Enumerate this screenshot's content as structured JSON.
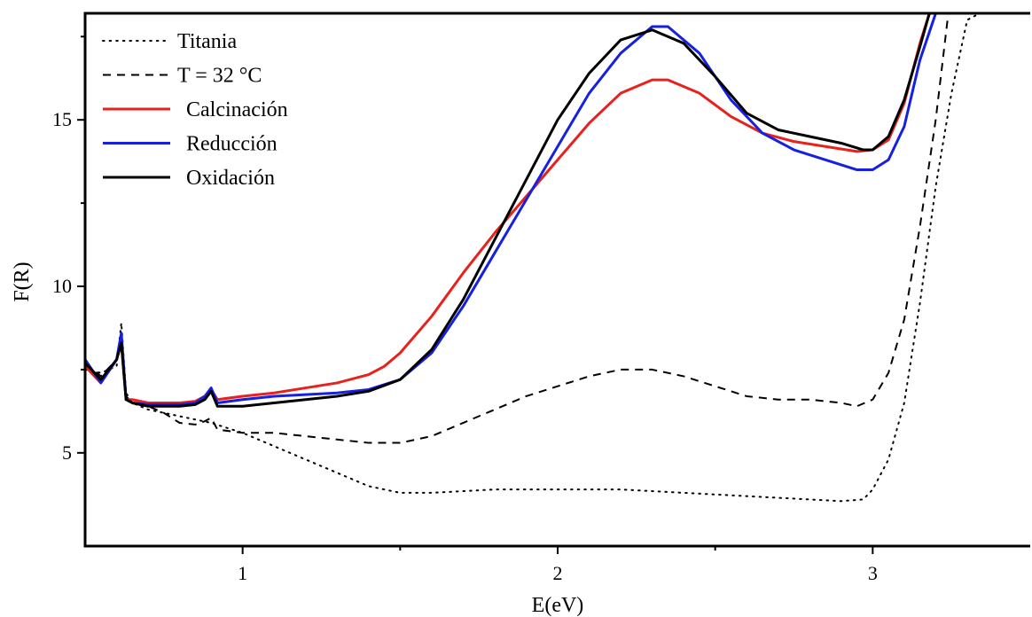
{
  "chart_data": {
    "type": "line",
    "title": "",
    "xlabel": "E(eV)",
    "ylabel": "F(R)",
    "xlim": [
      0.5,
      3.5
    ],
    "ylim": [
      2.2,
      18.2
    ],
    "x_ticks": [
      1,
      2,
      3
    ],
    "x_tick_labels": [
      "1",
      "2",
      "3"
    ],
    "y_ticks": [
      5,
      10,
      15
    ],
    "y_tick_labels": [
      "5",
      "10",
      "15"
    ],
    "grid": false,
    "legend_position": "top-left",
    "series": [
      {
        "name": "Titania",
        "color": "#000000",
        "style": "dotted",
        "points": [
          [
            0.5,
            7.5
          ],
          [
            0.55,
            7.4
          ],
          [
            0.6,
            7.6
          ],
          [
            0.615,
            8.9
          ],
          [
            0.63,
            6.8
          ],
          [
            0.65,
            6.5
          ],
          [
            0.7,
            6.3
          ],
          [
            0.8,
            6.1
          ],
          [
            0.9,
            5.9
          ],
          [
            1.0,
            5.6
          ],
          [
            1.1,
            5.2
          ],
          [
            1.2,
            4.8
          ],
          [
            1.3,
            4.4
          ],
          [
            1.4,
            4.0
          ],
          [
            1.5,
            3.8
          ],
          [
            1.6,
            3.8
          ],
          [
            1.8,
            3.9
          ],
          [
            2.0,
            3.9
          ],
          [
            2.2,
            3.9
          ],
          [
            2.4,
            3.8
          ],
          [
            2.6,
            3.7
          ],
          [
            2.8,
            3.6
          ],
          [
            2.9,
            3.55
          ],
          [
            2.97,
            3.6
          ],
          [
            3.0,
            3.9
          ],
          [
            3.05,
            4.8
          ],
          [
            3.1,
            6.5
          ],
          [
            3.15,
            9.5
          ],
          [
            3.2,
            13.0
          ],
          [
            3.25,
            15.8
          ],
          [
            3.3,
            18.0
          ],
          [
            3.34,
            18.2
          ]
        ]
      },
      {
        "name": "T = 32 °C",
        "color": "#000000",
        "style": "dashed",
        "points": [
          [
            0.5,
            7.7
          ],
          [
            0.55,
            7.3
          ],
          [
            0.6,
            7.8
          ],
          [
            0.615,
            8.3
          ],
          [
            0.63,
            6.7
          ],
          [
            0.65,
            6.5
          ],
          [
            0.7,
            6.4
          ],
          [
            0.75,
            6.2
          ],
          [
            0.8,
            5.9
          ],
          [
            0.85,
            5.85
          ],
          [
            0.88,
            5.95
          ],
          [
            0.9,
            6.05
          ],
          [
            0.92,
            5.7
          ],
          [
            1.0,
            5.6
          ],
          [
            1.1,
            5.6
          ],
          [
            1.2,
            5.5
          ],
          [
            1.3,
            5.4
          ],
          [
            1.4,
            5.3
          ],
          [
            1.5,
            5.3
          ],
          [
            1.6,
            5.5
          ],
          [
            1.7,
            5.9
          ],
          [
            1.8,
            6.3
          ],
          [
            1.9,
            6.7
          ],
          [
            2.0,
            7.0
          ],
          [
            2.1,
            7.3
          ],
          [
            2.2,
            7.5
          ],
          [
            2.3,
            7.5
          ],
          [
            2.4,
            7.3
          ],
          [
            2.5,
            7.0
          ],
          [
            2.6,
            6.7
          ],
          [
            2.7,
            6.6
          ],
          [
            2.8,
            6.6
          ],
          [
            2.9,
            6.5
          ],
          [
            2.95,
            6.4
          ],
          [
            3.0,
            6.6
          ],
          [
            3.05,
            7.4
          ],
          [
            3.1,
            9.0
          ],
          [
            3.15,
            11.8
          ],
          [
            3.2,
            15.0
          ],
          [
            3.24,
            18.2
          ]
        ]
      },
      {
        "name": "Calcinación",
        "color": "#e8211c",
        "style": "solid",
        "points": [
          [
            0.5,
            7.6
          ],
          [
            0.55,
            7.1
          ],
          [
            0.6,
            7.8
          ],
          [
            0.615,
            8.3
          ],
          [
            0.63,
            6.6
          ],
          [
            0.65,
            6.6
          ],
          [
            0.7,
            6.5
          ],
          [
            0.8,
            6.5
          ],
          [
            0.85,
            6.55
          ],
          [
            0.88,
            6.7
          ],
          [
            0.9,
            6.9
          ],
          [
            0.92,
            6.6
          ],
          [
            1.0,
            6.7
          ],
          [
            1.1,
            6.8
          ],
          [
            1.2,
            6.95
          ],
          [
            1.3,
            7.1
          ],
          [
            1.4,
            7.35
          ],
          [
            1.45,
            7.6
          ],
          [
            1.5,
            8.0
          ],
          [
            1.6,
            9.1
          ],
          [
            1.7,
            10.4
          ],
          [
            1.8,
            11.6
          ],
          [
            1.9,
            12.7
          ],
          [
            2.0,
            13.8
          ],
          [
            2.1,
            14.9
          ],
          [
            2.2,
            15.8
          ],
          [
            2.3,
            16.2
          ],
          [
            2.35,
            16.2
          ],
          [
            2.45,
            15.8
          ],
          [
            2.55,
            15.1
          ],
          [
            2.65,
            14.6
          ],
          [
            2.75,
            14.35
          ],
          [
            2.85,
            14.2
          ],
          [
            2.95,
            14.05
          ],
          [
            3.0,
            14.1
          ],
          [
            3.05,
            14.4
          ],
          [
            3.1,
            15.5
          ],
          [
            3.15,
            17.3
          ],
          [
            3.18,
            18.2
          ]
        ]
      },
      {
        "name": "Reducción",
        "color": "#1620e0",
        "style": "solid",
        "points": [
          [
            0.5,
            7.8
          ],
          [
            0.55,
            7.1
          ],
          [
            0.6,
            7.8
          ],
          [
            0.615,
            8.6
          ],
          [
            0.63,
            6.6
          ],
          [
            0.65,
            6.5
          ],
          [
            0.7,
            6.45
          ],
          [
            0.8,
            6.45
          ],
          [
            0.85,
            6.5
          ],
          [
            0.88,
            6.7
          ],
          [
            0.9,
            6.95
          ],
          [
            0.92,
            6.5
          ],
          [
            1.0,
            6.6
          ],
          [
            1.1,
            6.7
          ],
          [
            1.2,
            6.75
          ],
          [
            1.3,
            6.8
          ],
          [
            1.4,
            6.9
          ],
          [
            1.5,
            7.2
          ],
          [
            1.6,
            8.0
          ],
          [
            1.7,
            9.4
          ],
          [
            1.8,
            11.0
          ],
          [
            1.9,
            12.6
          ],
          [
            2.0,
            14.2
          ],
          [
            2.1,
            15.8
          ],
          [
            2.2,
            17.0
          ],
          [
            2.3,
            17.8
          ],
          [
            2.35,
            17.8
          ],
          [
            2.45,
            17.0
          ],
          [
            2.55,
            15.6
          ],
          [
            2.65,
            14.6
          ],
          [
            2.75,
            14.1
          ],
          [
            2.85,
            13.8
          ],
          [
            2.95,
            13.5
          ],
          [
            3.0,
            13.5
          ],
          [
            3.05,
            13.8
          ],
          [
            3.1,
            14.8
          ],
          [
            3.15,
            16.8
          ],
          [
            3.2,
            18.2
          ]
        ]
      },
      {
        "name": "Oxidación",
        "color": "#000000",
        "style": "solid",
        "points": [
          [
            0.5,
            7.7
          ],
          [
            0.55,
            7.2
          ],
          [
            0.6,
            7.8
          ],
          [
            0.615,
            8.3
          ],
          [
            0.63,
            6.6
          ],
          [
            0.65,
            6.5
          ],
          [
            0.7,
            6.4
          ],
          [
            0.8,
            6.4
          ],
          [
            0.85,
            6.45
          ],
          [
            0.88,
            6.6
          ],
          [
            0.9,
            6.85
          ],
          [
            0.92,
            6.4
          ],
          [
            1.0,
            6.4
          ],
          [
            1.1,
            6.5
          ],
          [
            1.2,
            6.6
          ],
          [
            1.3,
            6.7
          ],
          [
            1.4,
            6.85
          ],
          [
            1.5,
            7.2
          ],
          [
            1.6,
            8.1
          ],
          [
            1.7,
            9.6
          ],
          [
            1.8,
            11.4
          ],
          [
            1.9,
            13.2
          ],
          [
            2.0,
            15.0
          ],
          [
            2.1,
            16.4
          ],
          [
            2.2,
            17.4
          ],
          [
            2.3,
            17.7
          ],
          [
            2.4,
            17.3
          ],
          [
            2.5,
            16.3
          ],
          [
            2.6,
            15.2
          ],
          [
            2.7,
            14.7
          ],
          [
            2.8,
            14.5
          ],
          [
            2.9,
            14.3
          ],
          [
            2.97,
            14.1
          ],
          [
            3.0,
            14.1
          ],
          [
            3.05,
            14.5
          ],
          [
            3.1,
            15.6
          ],
          [
            3.15,
            17.2
          ],
          [
            3.18,
            18.2
          ]
        ]
      }
    ]
  }
}
